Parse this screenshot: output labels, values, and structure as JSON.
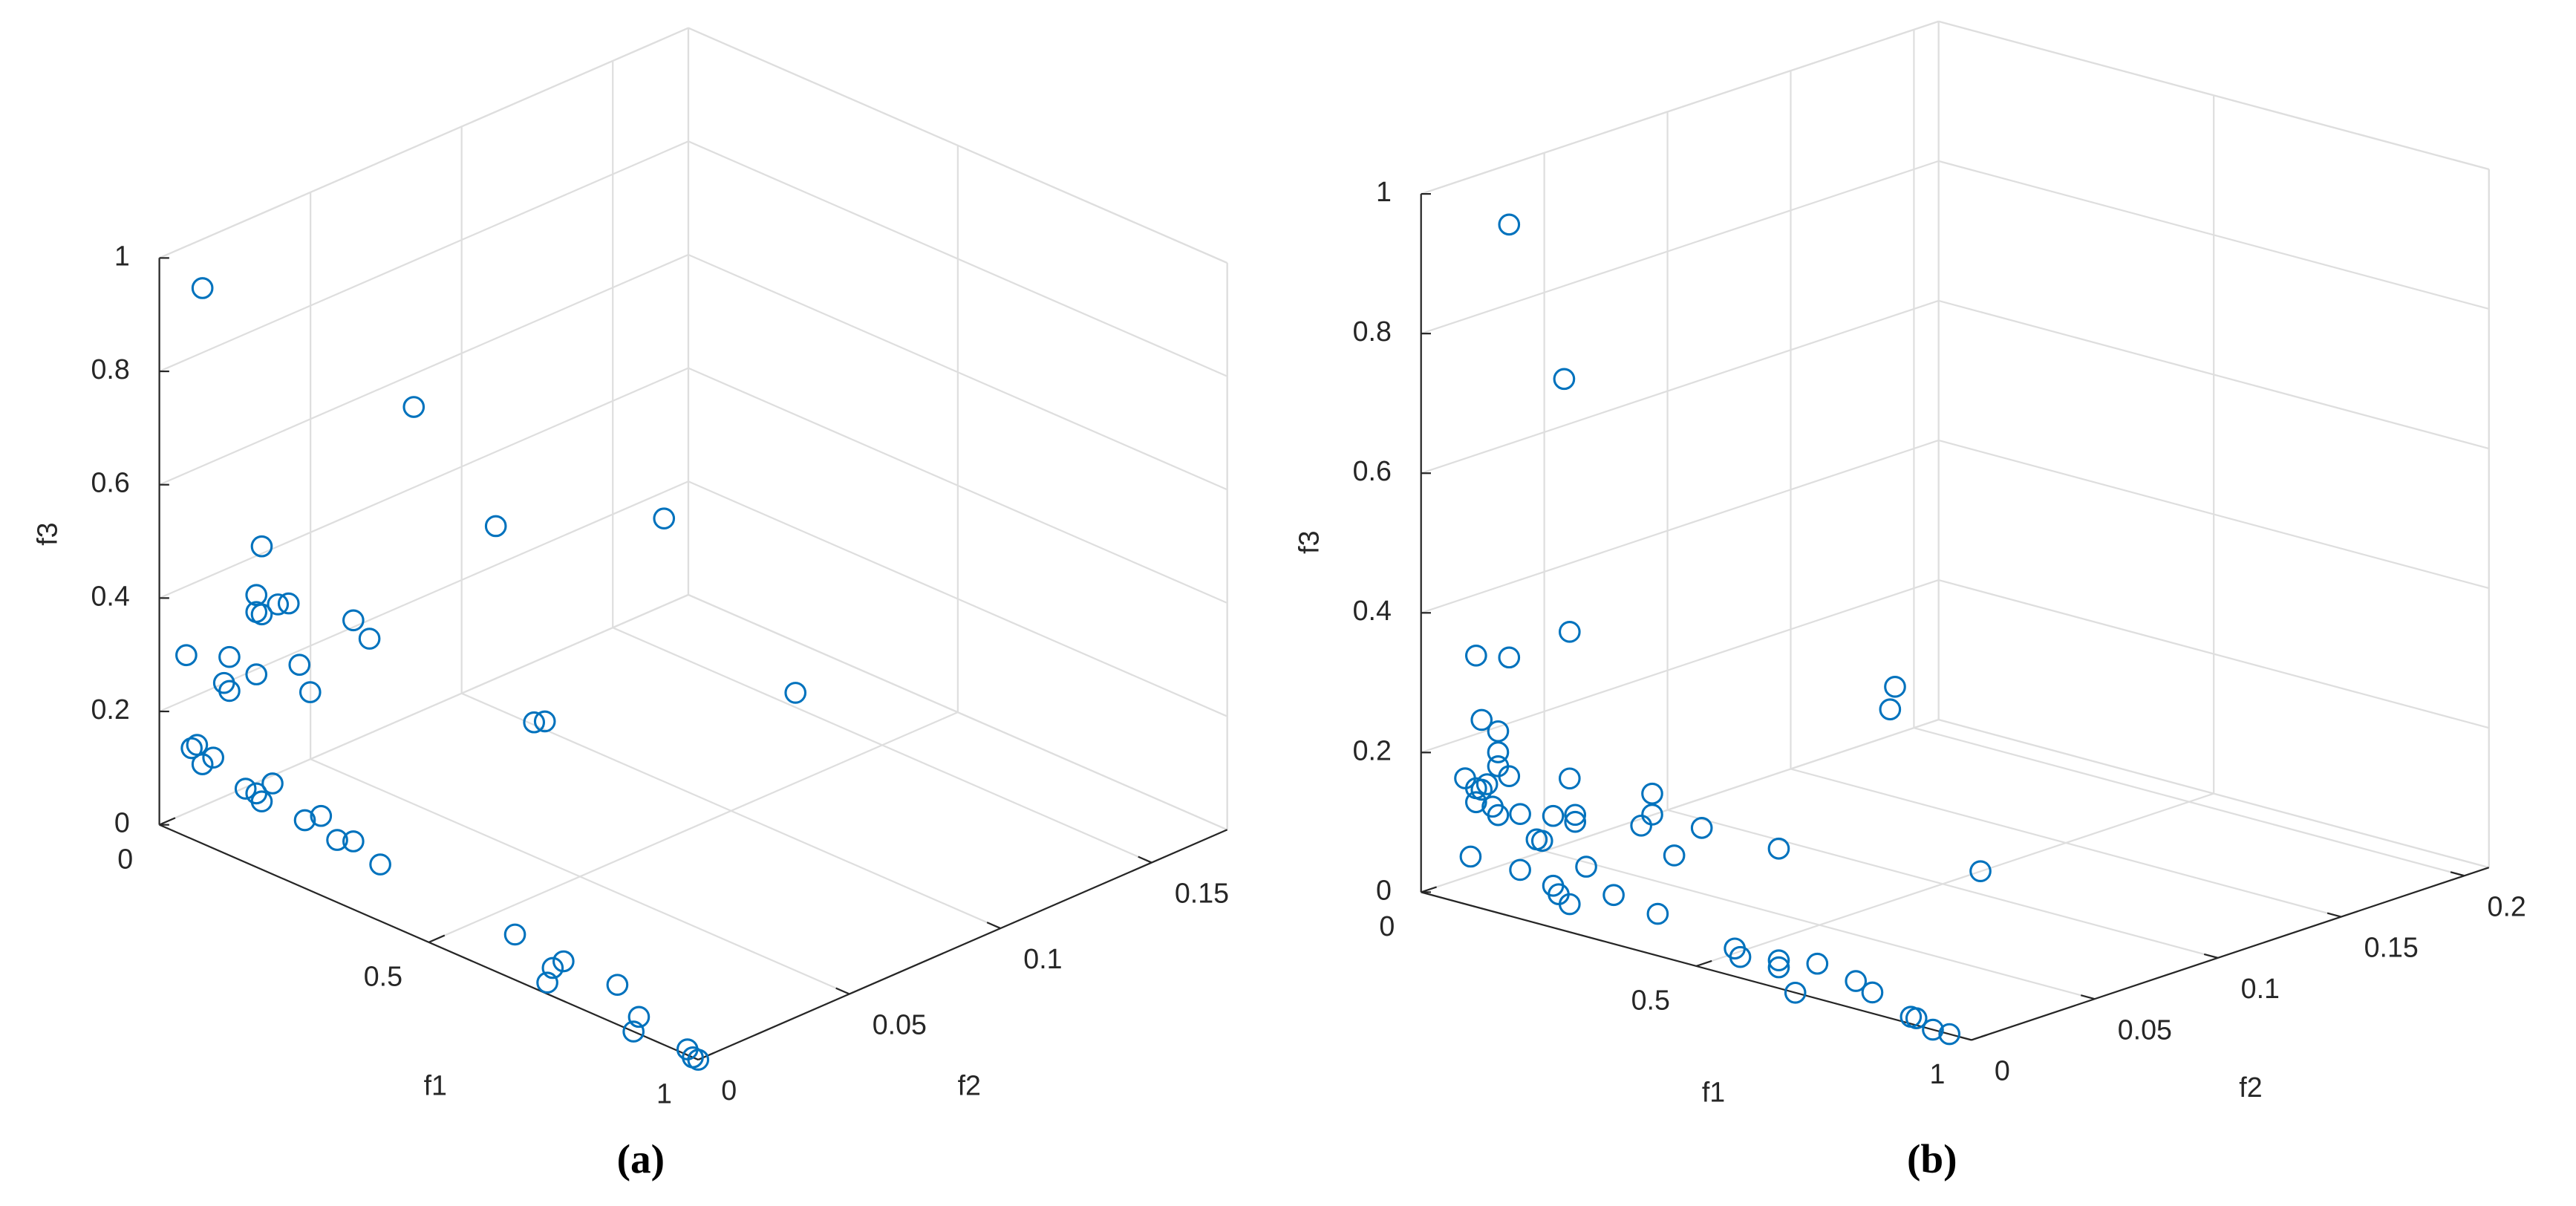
{
  "chart_data": [
    {
      "type": "scatter3d",
      "caption": "(a)",
      "xlabel": "f1",
      "ylabel": "f2",
      "zlabel": "f3",
      "xlim": [
        0,
        1
      ],
      "ylim": [
        0,
        0.175
      ],
      "zlim": [
        0,
        1
      ],
      "xticks": [
        0,
        0.5,
        1
      ],
      "yticks": [
        0,
        0.05,
        0.1,
        0.15
      ],
      "zticks": [
        0,
        0.2,
        0.4,
        0.6,
        0.8,
        1
      ],
      "grid": true,
      "color": "#0072bd",
      "x": [
        0.08,
        0.36,
        0.19,
        0.18,
        0.19,
        0.18,
        0.22,
        0.24,
        0.05,
        0.13,
        0.12,
        0.13,
        0.18,
        0.26,
        0.28,
        0.36,
        0.39,
        0.06,
        0.07,
        0.08,
        0.1,
        0.16,
        0.18,
        0.19,
        0.21,
        0.27,
        0.3,
        0.33,
        0.36,
        0.41,
        0.66,
        0.73,
        0.72,
        0.75,
        0.85,
        0.88,
        0.89,
        0.98,
        0.99,
        1,
        0.9,
        0.6,
        0.4,
        0.6,
        0.62
      ],
      "y": [
        0,
        0.02,
        0,
        0,
        0,
        0,
        0,
        0,
        0,
        0,
        0,
        0,
        0,
        0,
        0,
        0,
        0,
        0,
        0,
        0,
        0,
        0,
        0,
        0,
        0,
        0,
        0,
        0,
        0,
        0,
        0,
        0,
        0,
        0,
        0,
        0,
        0,
        0,
        0,
        0,
        0.05,
        0.06,
        0.04,
        0.017,
        0.017
      ],
      "z": [
        0.98,
        0.84,
        0.57,
        0.48,
        0.45,
        0.45,
        0.48,
        0.49,
        0.32,
        0.35,
        0.3,
        0.29,
        0.34,
        0.39,
        0.35,
        0.51,
        0.49,
        0.16,
        0.17,
        0.14,
        0.16,
        0.13,
        0.13,
        0.12,
        0.16,
        0.12,
        0.14,
        0.11,
        0.12,
        0.1,
        0.08,
        0.05,
        0.02,
        0.07,
        0.07,
        0,
        0.03,
        0.01,
        0,
        0,
        0.49,
        0.65,
        0.6,
        0.39,
        0.4
      ]
    },
    {
      "type": "scatter3d",
      "caption": "(b)",
      "xlabel": "f1",
      "ylabel": "f2",
      "zlabel": "f3",
      "xlim": [
        0,
        1
      ],
      "ylim": [
        0,
        0.21
      ],
      "zlim": [
        0,
        1
      ],
      "xticks": [
        0,
        0.5,
        1
      ],
      "yticks": [
        0,
        0.05,
        0.1,
        0.15,
        0.2
      ],
      "zticks": [
        0,
        0.2,
        0.4,
        0.6,
        0.8,
        1
      ],
      "grid": true,
      "color": "#0072bd",
      "x": [
        0.16,
        0.26,
        0.27,
        0.1,
        0.16,
        0.11,
        0.14,
        0.14,
        0.08,
        0.1,
        0.11,
        0.12,
        0.16,
        0.14,
        0.27,
        0.1,
        0.13,
        0.14,
        0.18,
        0.24,
        0.28,
        0.28,
        0.42,
        0.42,
        0.4,
        0.51,
        0.21,
        0.22,
        0.3,
        0.18,
        0.09,
        0.46,
        0.24,
        0.25,
        0.27,
        0.35,
        0.43,
        0.65,
        0.57,
        0.58,
        0.65,
        0.65,
        0.72,
        0.68,
        0.79,
        0.82,
        0.89,
        0.9,
        0.93,
        0.96,
        0.7,
        0.7,
        0.9
      ],
      "y": [
        0,
        0,
        0,
        0,
        0,
        0,
        0,
        0,
        0,
        0,
        0,
        0,
        0,
        0,
        0,
        0,
        0,
        0,
        0,
        0,
        0,
        0,
        0,
        0,
        0,
        0,
        0,
        0,
        0,
        0,
        0,
        0,
        0,
        0,
        0,
        0,
        0,
        0,
        0,
        0,
        0,
        0,
        0,
        0,
        0,
        0,
        0,
        0,
        0,
        0,
        0.034,
        0.036,
        0.026
      ],
      "z": [
        0.99,
        0.79,
        0.43,
        0.36,
        0.37,
        0.27,
        0.26,
        0.23,
        0.18,
        0.17,
        0.17,
        0.18,
        0.2,
        0.21,
        0.22,
        0.15,
        0.15,
        0.14,
        0.15,
        0.16,
        0.17,
        0.16,
        0.23,
        0.2,
        0.18,
        0.2,
        0.12,
        0.12,
        0.1,
        0.07,
        0.07,
        0.15,
        0.06,
        0.05,
        0.04,
        0.07,
        0.06,
        0.2,
        0.04,
        0.03,
        0.04,
        0.03,
        0.05,
        0,
        0.04,
        0.03,
        0.01,
        0.01,
        0,
        0,
        0.37,
        0.4,
        0.19
      ]
    }
  ]
}
